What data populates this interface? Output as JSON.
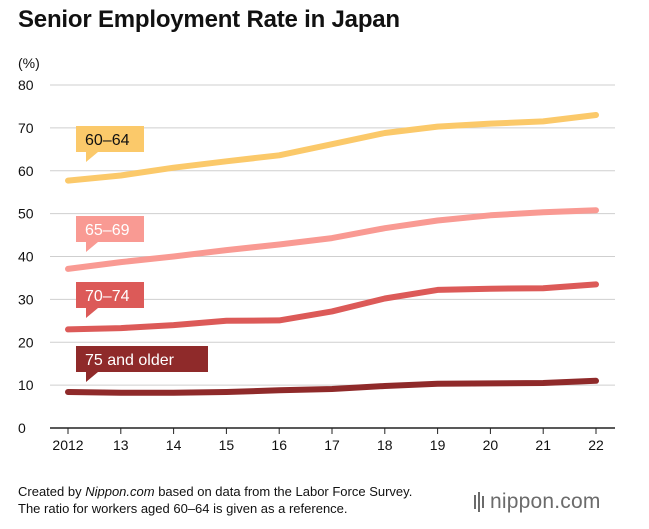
{
  "title": "Senior Employment Rate in Japan",
  "chart_data": {
    "type": "line",
    "title": "Senior Employment Rate in Japan",
    "ylabel": "(%)",
    "xlabel": "",
    "x": [
      "2012",
      "13",
      "14",
      "15",
      "16",
      "17",
      "18",
      "19",
      "20",
      "21",
      "22"
    ],
    "ylim": [
      0,
      80
    ],
    "yticks": [
      0,
      10,
      20,
      30,
      40,
      50,
      60,
      70,
      80
    ],
    "grid": true,
    "series": [
      {
        "name": "60–64",
        "color": "#fbc96a",
        "values": [
          57.7,
          58.9,
          60.7,
          62.2,
          63.6,
          66.2,
          68.8,
          70.3,
          71.0,
          71.5,
          73.0
        ]
      },
      {
        "name": "65–69",
        "color": "#f99a93",
        "values": [
          37.1,
          38.7,
          40.0,
          41.5,
          42.8,
          44.3,
          46.6,
          48.4,
          49.6,
          50.3,
          50.8
        ]
      },
      {
        "name": "70–74",
        "color": "#dc5a58",
        "values": [
          23.0,
          23.3,
          24.0,
          25.0,
          25.1,
          27.2,
          30.2,
          32.2,
          32.5,
          32.6,
          33.5
        ]
      },
      {
        "name": "75 and older",
        "color": "#8f2a2a",
        "values": [
          8.4,
          8.2,
          8.2,
          8.4,
          8.8,
          9.1,
          9.8,
          10.3,
          10.4,
          10.5,
          11.0
        ]
      }
    ]
  },
  "footer": {
    "line1_prefix": "Created by ",
    "line1_source": "Nippon.com",
    "line1_suffix": " based on data from the Labor Force Survey.",
    "line2": "The ratio for workers aged 60–64 is given as a reference."
  },
  "brand": "nippon.com"
}
